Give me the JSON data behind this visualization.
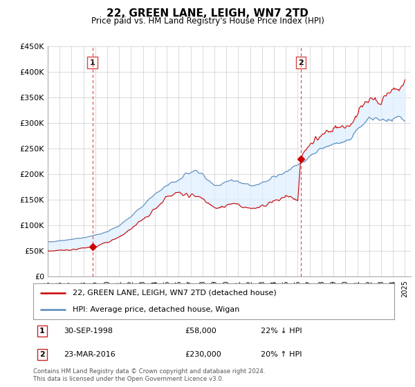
{
  "title": "22, GREEN LANE, LEIGH, WN7 2TD",
  "subtitle": "Price paid vs. HM Land Registry's House Price Index (HPI)",
  "footer": "Contains HM Land Registry data © Crown copyright and database right 2024.\nThis data is licensed under the Open Government Licence v3.0.",
  "legend_line1": "22, GREEN LANE, LEIGH, WN7 2TD (detached house)",
  "legend_line2": "HPI: Average price, detached house, Wigan",
  "annotation1": {
    "label": "1",
    "date": "30-SEP-1998",
    "price": "£58,000",
    "hpi": "22% ↓ HPI"
  },
  "annotation2": {
    "label": "2",
    "date": "23-MAR-2016",
    "price": "£230,000",
    "hpi": "20% ↑ HPI"
  },
  "ylim": [
    0,
    450000
  ],
  "yticks": [
    0,
    50000,
    100000,
    150000,
    200000,
    250000,
    300000,
    350000,
    400000,
    450000
  ],
  "ytick_labels": [
    "£0",
    "£50K",
    "£100K",
    "£150K",
    "£200K",
    "£250K",
    "£300K",
    "£350K",
    "£400K",
    "£450K"
  ],
  "xlim_start": 1995.0,
  "xlim_end": 2025.5,
  "red_line_color": "#cc0000",
  "blue_line_color": "#5588bb",
  "fill_color": "#ddeeff",
  "vline_color": "#dd4444",
  "background_color": "#ffffff",
  "vline1_x": 1998.75,
  "vline2_x": 2016.25,
  "dot1_x": 1998.75,
  "dot1_y": 58000,
  "dot2_x": 2016.25,
  "dot2_y": 230000
}
